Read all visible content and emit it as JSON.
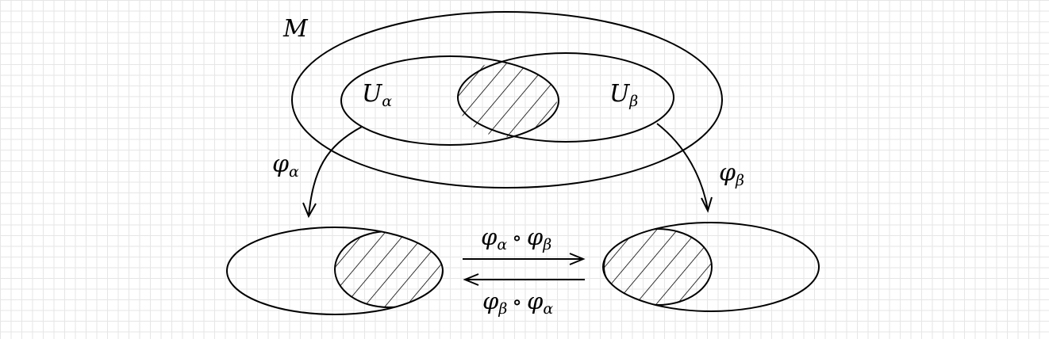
{
  "labels": {
    "manifold": "M",
    "chart_a_base": "U",
    "chart_a_sub": "α",
    "chart_b_base": "U",
    "chart_b_sub": "β",
    "map_a_base": "φ",
    "map_a_sub": "α",
    "map_b_base": "φ",
    "map_b_sub": "β",
    "transition_ab": {
      "f": "φ",
      "f_sub": "α",
      "op": "∘",
      "g": "φ",
      "g_sub": "β"
    },
    "transition_ba": {
      "f": "φ",
      "f_sub": "β",
      "op": "∘",
      "g": "φ",
      "g_sub": "α"
    }
  },
  "colors": {
    "stroke": "#000000",
    "grid": "#e6e6e6",
    "background": "#ffffff"
  }
}
